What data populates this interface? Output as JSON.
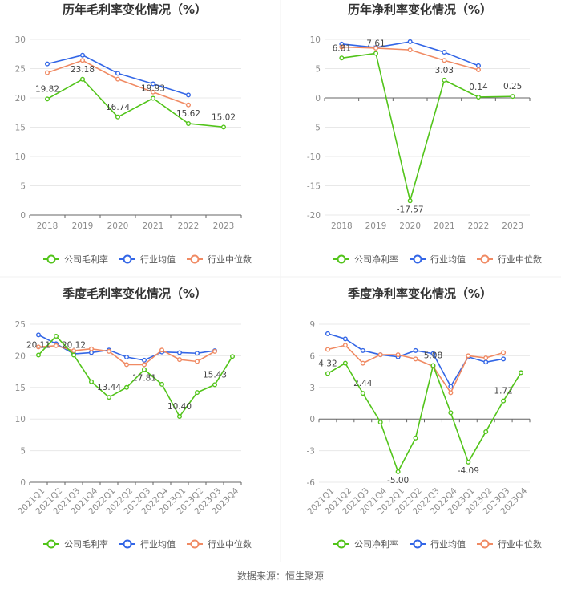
{
  "colors": {
    "company": "#52c41a",
    "avg": "#3366e6",
    "median": "#f08a63",
    "grid": "#e8e8e8",
    "axis": "#666666"
  },
  "source": "数据来源：恒生聚源",
  "chart_data": [
    {
      "type": "line",
      "title": "历年毛利率变化情况（%）",
      "categories": [
        "2018",
        "2019",
        "2020",
        "2021",
        "2022",
        "2023"
      ],
      "ylim": [
        0,
        30
      ],
      "yticks": [
        0,
        5,
        10,
        15,
        20,
        25,
        30
      ],
      "series": [
        {
          "name": "公司毛利率",
          "key": "company",
          "values": [
            19.82,
            23.18,
            16.74,
            19.93,
            15.62,
            15.02
          ]
        },
        {
          "name": "行业均值",
          "key": "avg",
          "values": [
            25.8,
            27.3,
            24.2,
            22.4,
            20.5,
            null
          ]
        },
        {
          "name": "行业中位数",
          "key": "median",
          "values": [
            24.3,
            26.4,
            23.2,
            21.0,
            18.8,
            null
          ]
        }
      ],
      "data_labels": [
        {
          "i": 0,
          "text": "19.82"
        },
        {
          "i": 1,
          "text": "23.18"
        },
        {
          "i": 2,
          "text": "16.74"
        },
        {
          "i": 3,
          "text": "19.93"
        },
        {
          "i": 4,
          "text": "15.62"
        },
        {
          "i": 5,
          "text": "15.02"
        }
      ],
      "legend": [
        "公司毛利率",
        "行业均值",
        "行业中位数"
      ]
    },
    {
      "type": "line",
      "title": "历年净利率变化情况（%）",
      "categories": [
        "2018",
        "2019",
        "2020",
        "2021",
        "2022",
        "2023"
      ],
      "ylim": [
        -20,
        10
      ],
      "yticks": [
        -20,
        -15,
        -10,
        -5,
        0,
        5,
        10
      ],
      "series": [
        {
          "name": "公司净利率",
          "key": "company",
          "values": [
            6.81,
            7.61,
            -17.57,
            3.03,
            0.14,
            0.25
          ]
        },
        {
          "name": "行业均值",
          "key": "avg",
          "values": [
            9.2,
            8.6,
            9.6,
            7.8,
            5.5,
            null
          ]
        },
        {
          "name": "行业中位数",
          "key": "median",
          "values": [
            8.7,
            8.5,
            8.2,
            6.4,
            4.8,
            null
          ]
        }
      ],
      "data_labels": [
        {
          "i": 0,
          "text": "6.81"
        },
        {
          "i": 1,
          "text": "7.61"
        },
        {
          "i": 2,
          "text": "-17.57"
        },
        {
          "i": 3,
          "text": "3.03"
        },
        {
          "i": 4,
          "text": "0.14"
        },
        {
          "i": 5,
          "text": "0.25"
        }
      ],
      "legend": [
        "公司净利率",
        "行业均值",
        "行业中位数"
      ]
    },
    {
      "type": "line",
      "title": "季度毛利率变化情况（%）",
      "categories": [
        "2021Q1",
        "2021Q2",
        "2021Q3",
        "2021Q4",
        "2022Q1",
        "2022Q2",
        "2022Q3",
        "2022Q4",
        "2023Q1",
        "2023Q2",
        "2023Q3",
        "2023Q4"
      ],
      "ylim": [
        0,
        25
      ],
      "yticks": [
        0,
        5,
        10,
        15,
        20,
        25
      ],
      "series": [
        {
          "name": "公司毛利率",
          "key": "company",
          "values": [
            20.11,
            23.1,
            20.12,
            15.9,
            13.44,
            15.0,
            17.81,
            15.5,
            10.4,
            14.2,
            15.43,
            19.9
          ]
        },
        {
          "name": "行业均值",
          "key": "avg",
          "values": [
            23.3,
            21.9,
            20.3,
            20.5,
            20.9,
            19.8,
            19.3,
            20.6,
            20.5,
            20.4,
            20.8,
            null
          ]
        },
        {
          "name": "行业中位数",
          "key": "median",
          "values": [
            21.4,
            21.6,
            20.8,
            21.1,
            20.7,
            18.6,
            18.6,
            20.9,
            19.4,
            19.1,
            20.7,
            null
          ]
        }
      ],
      "data_labels": [
        {
          "i": 0,
          "text": "20.11"
        },
        {
          "i": 2,
          "text": "20.12"
        },
        {
          "i": 4,
          "text": "13.44"
        },
        {
          "i": 6,
          "text": "17.81"
        },
        {
          "i": 8,
          "text": "10.40"
        },
        {
          "i": 10,
          "text": "15.43"
        }
      ],
      "legend": [
        "公司毛利率",
        "行业均值",
        "行业中位数"
      ]
    },
    {
      "type": "line",
      "title": "季度净利率变化情况（%）",
      "categories": [
        "2021Q1",
        "2021Q2",
        "2021Q3",
        "2021Q4",
        "2022Q1",
        "2022Q2",
        "2022Q3",
        "2022Q4",
        "2023Q1",
        "2023Q2",
        "2023Q3",
        "2023Q4"
      ],
      "ylim": [
        -6,
        9
      ],
      "yticks": [
        -6,
        -3,
        0,
        3,
        6,
        9
      ],
      "series": [
        {
          "name": "公司净利率",
          "key": "company",
          "values": [
            4.32,
            5.3,
            2.44,
            -0.3,
            -5.0,
            -1.8,
            5.08,
            0.6,
            -4.09,
            -1.2,
            1.72,
            4.4
          ]
        },
        {
          "name": "行业均值",
          "key": "avg",
          "values": [
            8.1,
            7.6,
            6.5,
            6.1,
            5.9,
            6.5,
            6.2,
            3.1,
            5.9,
            5.4,
            5.7,
            null
          ]
        },
        {
          "name": "行业中位数",
          "key": "median",
          "values": [
            6.6,
            7.0,
            5.3,
            6.1,
            6.1,
            5.7,
            5.0,
            2.5,
            6.0,
            5.8,
            6.3,
            null
          ]
        }
      ],
      "data_labels": [
        {
          "i": 0,
          "text": "4.32"
        },
        {
          "i": 2,
          "text": "2.44"
        },
        {
          "i": 4,
          "text": "-5.00"
        },
        {
          "i": 6,
          "text": "5.08"
        },
        {
          "i": 8,
          "text": "-4.09"
        },
        {
          "i": 10,
          "text": "1.72"
        }
      ],
      "legend": [
        "公司净利率",
        "行业均值",
        "行业中位数"
      ]
    }
  ]
}
